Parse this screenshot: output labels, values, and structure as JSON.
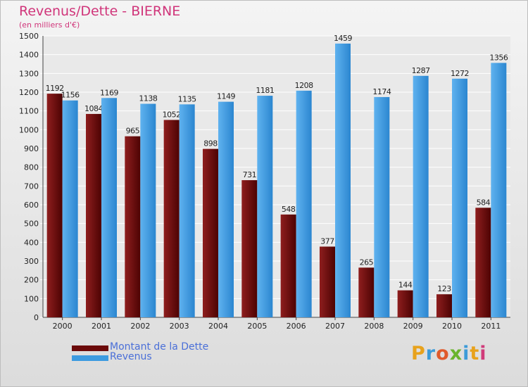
{
  "title": "Revenus/Dette - BIERNE",
  "subtitle": "(en milliers d'€)",
  "logo": {
    "letters": [
      "P",
      "r",
      "o",
      "x",
      "i",
      "t",
      "i"
    ],
    "colors": [
      "#e8a21c",
      "#3c9bd8",
      "#e05a2b",
      "#6ab42d",
      "#3c9bd8",
      "#e8a21c",
      "#d03b7a"
    ]
  },
  "colors": {
    "debt": "#6b0a0a",
    "revenue": "#3d9be0",
    "title": "#d0357a",
    "legend_text": "#4a6fd8"
  },
  "chart_data": {
    "type": "bar",
    "title": "Revenus/Dette - BIERNE",
    "subtitle": "(en milliers d'€)",
    "xlabel": "",
    "ylabel": "",
    "categories": [
      "2000",
      "2001",
      "2002",
      "2003",
      "2004",
      "2005",
      "2006",
      "2007",
      "2008",
      "2009",
      "2010",
      "2011"
    ],
    "series": [
      {
        "name": "Montant de la Dette",
        "values": [
          1192,
          1084,
          965,
          1052,
          898,
          731,
          548,
          377,
          265,
          144,
          123,
          584
        ]
      },
      {
        "name": "Revenus",
        "values": [
          1156,
          1169,
          1138,
          1135,
          1149,
          1181,
          1208,
          1459,
          1174,
          1287,
          1272,
          1356
        ]
      }
    ],
    "ylim": [
      0,
      1500
    ],
    "yticks": [
      0,
      100,
      200,
      300,
      400,
      500,
      600,
      700,
      800,
      900,
      1000,
      1100,
      1200,
      1300,
      1400,
      1500
    ],
    "grid": true,
    "legend": "bottom-left",
    "data_labels": true
  }
}
